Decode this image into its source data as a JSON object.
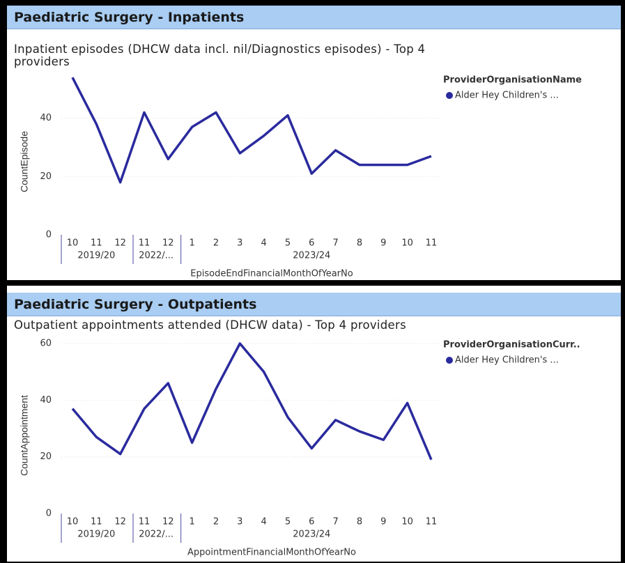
{
  "panels": [
    {
      "header": "Paediatric Surgery - Inpatients"
    },
    {
      "header": "Paediatric Surgery  - Outpatients"
    }
  ],
  "chart_data": [
    {
      "type": "line",
      "title": "Inpatient episodes (DHCW data incl. nil/Diagnostics episodes) - Top 4 providers",
      "y_label": "CountEpisode",
      "x_label": "EpisodeEndFinancialMonthOfYearNo",
      "category_groups": [
        {
          "label": "2019/20",
          "categories": [
            "10",
            "11",
            "12"
          ]
        },
        {
          "label": "2022/...",
          "categories": [
            "11",
            "12"
          ]
        },
        {
          "label": "2023/24",
          "categories": [
            "1",
            "2",
            "3",
            "4",
            "5",
            "6",
            "7",
            "8",
            "9",
            "10",
            "11"
          ]
        }
      ],
      "legend_title": "ProviderOrganisationName",
      "series": [
        {
          "name": "Alder Hey Children's  ...",
          "color": "#2a2a9e",
          "values": [
            54,
            38,
            18,
            42,
            26,
            37,
            42,
            28,
            34,
            41,
            21,
            29,
            24,
            24,
            24,
            27
          ]
        }
      ],
      "ylim": [
        0,
        55
      ],
      "yticks": [
        0,
        20,
        40
      ],
      "grid": true,
      "legend": "top-right"
    },
    {
      "type": "line",
      "title": "Outpatient appointments attended (DHCW data) - Top 4 providers",
      "y_label": "CountAppointment",
      "x_label": "AppointmentFinancialMonthOfYearNo",
      "category_groups": [
        {
          "label": "2019/20",
          "categories": [
            "10",
            "11",
            "12"
          ]
        },
        {
          "label": "2022/...",
          "categories": [
            "11",
            "12"
          ]
        },
        {
          "label": "2023/24",
          "categories": [
            "1",
            "2",
            "3",
            "4",
            "5",
            "6",
            "7",
            "8",
            "9",
            "10",
            "11"
          ]
        }
      ],
      "legend_title": "ProviderOrganisationCurr..",
      "series": [
        {
          "name": "Alder Hey Children's  ...",
          "color": "#2a2a9e",
          "values": [
            37,
            27,
            21,
            37,
            46,
            25,
            44,
            60,
            50,
            34,
            23,
            33,
            29,
            26,
            39,
            19
          ]
        }
      ],
      "ylim": [
        0,
        60
      ],
      "yticks": [
        0,
        20,
        40,
        60
      ],
      "grid": true,
      "legend": "top-right"
    }
  ]
}
